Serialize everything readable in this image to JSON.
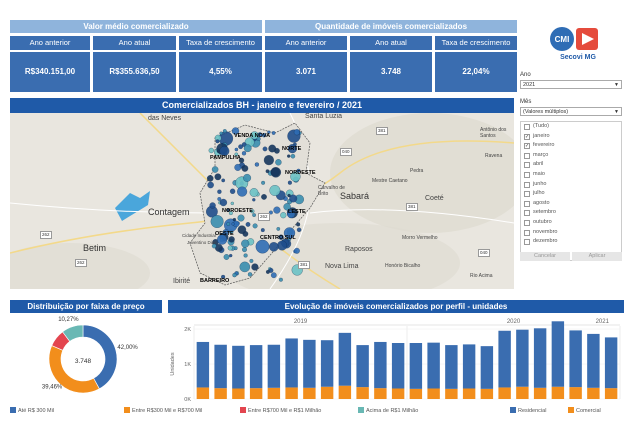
{
  "kpi": {
    "valor_medio_title": "Valor médio comercializado",
    "quantidade_title": "Quantidade de imóveis comercializados",
    "labels": [
      "Ano anterior",
      "Ano atual",
      "Taxa de crescimento",
      "Ano anterior",
      "Ano atual",
      "Taxa de crescimento"
    ],
    "values": [
      "R$340.151,00",
      "R$355.636,50",
      "4,55%",
      "3.071",
      "3.748",
      "22,04%"
    ]
  },
  "logo": {
    "text": "Secovi MG",
    "badge": "CMI"
  },
  "filters": {
    "ano_label": "Ano",
    "ano_value": "2021",
    "mes_label": "Mês",
    "mes_value": "(Valores múltiplos)",
    "months": [
      {
        "label": "(Tudo)",
        "checked": false
      },
      {
        "label": "janeiro",
        "checked": true
      },
      {
        "label": "fevereiro",
        "checked": true
      },
      {
        "label": "março",
        "checked": false
      },
      {
        "label": "abril",
        "checked": false
      },
      {
        "label": "maio",
        "checked": false
      },
      {
        "label": "junho",
        "checked": false
      },
      {
        "label": "julho",
        "checked": false
      },
      {
        "label": "agosto",
        "checked": false
      },
      {
        "label": "setembro",
        "checked": false
      },
      {
        "label": "outubro",
        "checked": false
      },
      {
        "label": "novembro",
        "checked": false
      },
      {
        "label": "dezembro",
        "checked": false
      }
    ],
    "cancel_label": "Cancelar",
    "apply_label": "Aplicar"
  },
  "map": {
    "title": "Comercializados BH - janeiro e fevereiro / 2021",
    "places": {
      "das_neves": "das Neves",
      "santa_luzia": "Santa Luzia",
      "antonio_dos_santos": "Antônio dos Santos",
      "venda_nova": "VENDA NOVA",
      "norte": "NORTE",
      "pampulha": "PAMPULHA",
      "nordeste": "NORDESTE",
      "contagem": "Contagem",
      "noroeste": "NOROESTE",
      "leste": "LESTE",
      "sabara": "Sabará",
      "coete": "Coeté",
      "betim": "Betim",
      "oeste": "OESTE",
      "centro_sul": "CENTRO SUL",
      "raposos": "Raposos",
      "nova_lima": "Nova Lima",
      "barreiro": "BARREIRO",
      "ibirite": "Ibirité",
      "carvalho_de_brito": "Carvalho de Brito",
      "morro_vermelho": "Morro Vermelho",
      "pedra": "Pedra",
      "ravena": "Ravena",
      "cidade_industrial": "Cidade Industrial",
      "juventino": "Juventino Dias",
      "rio_acima": "Rio Acima",
      "mestre_caetano": "Mestre Caetano",
      "honorio_bicalho": "Honório Bicalho"
    },
    "roads": [
      "381",
      "040",
      "381",
      "262",
      "262",
      "381",
      "040",
      "262"
    ]
  },
  "donut": {
    "title": "Distribuição por faixa de preço",
    "center": "3.748",
    "slices": [
      {
        "name": "Até R$ 300 Mil",
        "pct": 42.0,
        "label": "42,00%",
        "color": "#3a6db0"
      },
      {
        "name": "Entre R$300 Mil e R$700 Mil",
        "pct": 39.46,
        "label": "39,46%",
        "color": "#f28e1c"
      },
      {
        "name": "Entre R$700 Mil e R$1 Milhão",
        "pct": 8.27,
        "label": "",
        "color": "#e3454f"
      },
      {
        "name": "Acima de R$1 Milhão",
        "pct": 10.27,
        "label": "10,27%",
        "color": "#69b8b4"
      }
    ]
  },
  "bars": {
    "title": "Evolução de imóveis comercializados por perfil - unidades",
    "ylabel": "Unidades",
    "year_labels": [
      "2019",
      "2020",
      "2021"
    ],
    "yticks": [
      "2K",
      "1K",
      "0K"
    ],
    "residencial": [
      1300,
      1240,
      1220,
      1230,
      1230,
      1400,
      1370,
      1330,
      1510,
      1200,
      1320,
      1300,
      1310,
      1310,
      1250,
      1260,
      1220,
      1620,
      1630,
      1700,
      1870,
      1620,
      1540,
      1450
    ],
    "comercial": [
      330,
      310,
      300,
      310,
      320,
      330,
      320,
      350,
      380,
      340,
      310,
      300,
      290,
      300,
      290,
      300,
      290,
      330,
      350,
      320,
      350,
      340,
      320,
      310
    ],
    "legend": [
      {
        "name": "Residencial",
        "color": "#3a6db0"
      },
      {
        "name": "Comercial",
        "color": "#f28e1c"
      }
    ]
  }
}
